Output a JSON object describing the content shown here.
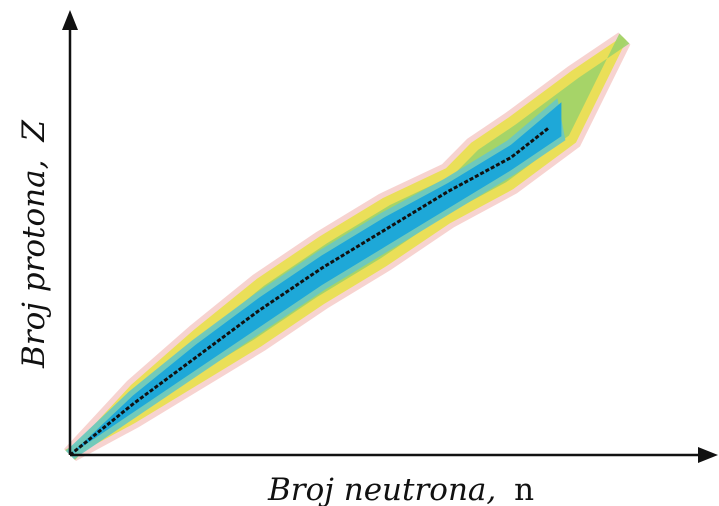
{
  "chart_data": {
    "type": "scatter",
    "title": "",
    "xlabel": "Broj neutrona,",
    "xlabel_symbol": "n",
    "ylabel": "Broj protona,",
    "ylabel_symbol": "Z",
    "ticks": "none",
    "grid": false,
    "legend": "none",
    "valley_of_stability": {
      "stable_line_points": [
        [
          0.0,
          0.0
        ],
        [
          0.1,
          0.12
        ],
        [
          0.2,
          0.23
        ],
        [
          0.3,
          0.34
        ],
        [
          0.4,
          0.44
        ],
        [
          0.5,
          0.53
        ],
        [
          0.6,
          0.62
        ],
        [
          0.7,
          0.7
        ],
        [
          0.76,
          0.77
        ]
      ],
      "band_outer_upper": [
        [
          0.0,
          0.0
        ],
        [
          0.1,
          0.16
        ],
        [
          0.2,
          0.29
        ],
        [
          0.3,
          0.41
        ],
        [
          0.4,
          0.51
        ],
        [
          0.5,
          0.6
        ],
        [
          0.6,
          0.67
        ],
        [
          0.64,
          0.73
        ],
        [
          0.7,
          0.79
        ],
        [
          0.8,
          0.9
        ],
        [
          0.88,
          0.98
        ]
      ],
      "band_outer_lower": [
        [
          0.0,
          0.0
        ],
        [
          0.1,
          0.08
        ],
        [
          0.2,
          0.17
        ],
        [
          0.3,
          0.26
        ],
        [
          0.4,
          0.36
        ],
        [
          0.5,
          0.45
        ],
        [
          0.6,
          0.55
        ],
        [
          0.7,
          0.63
        ],
        [
          0.8,
          0.74
        ],
        [
          0.88,
          0.98
        ]
      ],
      "band_core_upper": [
        [
          0.0,
          0.0
        ],
        [
          0.1,
          0.14
        ],
        [
          0.2,
          0.26
        ],
        [
          0.3,
          0.37
        ],
        [
          0.4,
          0.47
        ],
        [
          0.5,
          0.56
        ],
        [
          0.6,
          0.64
        ],
        [
          0.7,
          0.73
        ],
        [
          0.78,
          0.83
        ]
      ],
      "band_core_lower": [
        [
          0.0,
          0.0
        ],
        [
          0.1,
          0.1
        ],
        [
          0.2,
          0.2
        ],
        [
          0.3,
          0.3
        ],
        [
          0.4,
          0.4
        ],
        [
          0.5,
          0.49
        ],
        [
          0.6,
          0.58
        ],
        [
          0.7,
          0.67
        ],
        [
          0.78,
          0.75
        ]
      ]
    },
    "colors": {
      "stable": "#111111",
      "core": "#1ea8d8",
      "inner": "#6cc8c0",
      "middle": "#9fd36a",
      "outer": "#e8e04a",
      "fringe": "#f2b6b0"
    }
  }
}
